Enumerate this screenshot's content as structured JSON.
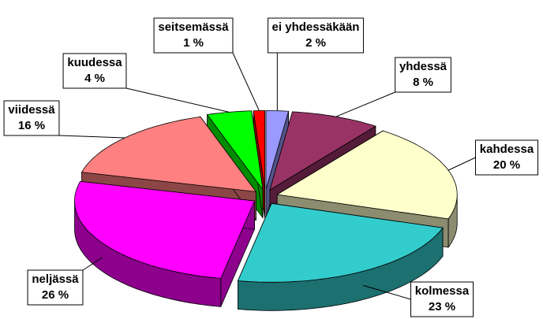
{
  "chart_data": {
    "type": "pie3d",
    "categories": [
      "ei yhdessäkään",
      "yhdessä",
      "kahdessa",
      "kolmessa",
      "neljässä",
      "viidessä",
      "kuudessa",
      "seitsemässä"
    ],
    "values": [
      2,
      8,
      20,
      23,
      26,
      16,
      4,
      1
    ],
    "value_labels": [
      "2 %",
      "8 %",
      "20 %",
      "23 %",
      "26 %",
      "16 %",
      "4 %",
      "1 %"
    ],
    "colors": [
      "#9999ff",
      "#993366",
      "#ffffcc",
      "#33cccc",
      "#ff00ff",
      "#ff8080",
      "#00ff00",
      "#ff0000"
    ]
  }
}
